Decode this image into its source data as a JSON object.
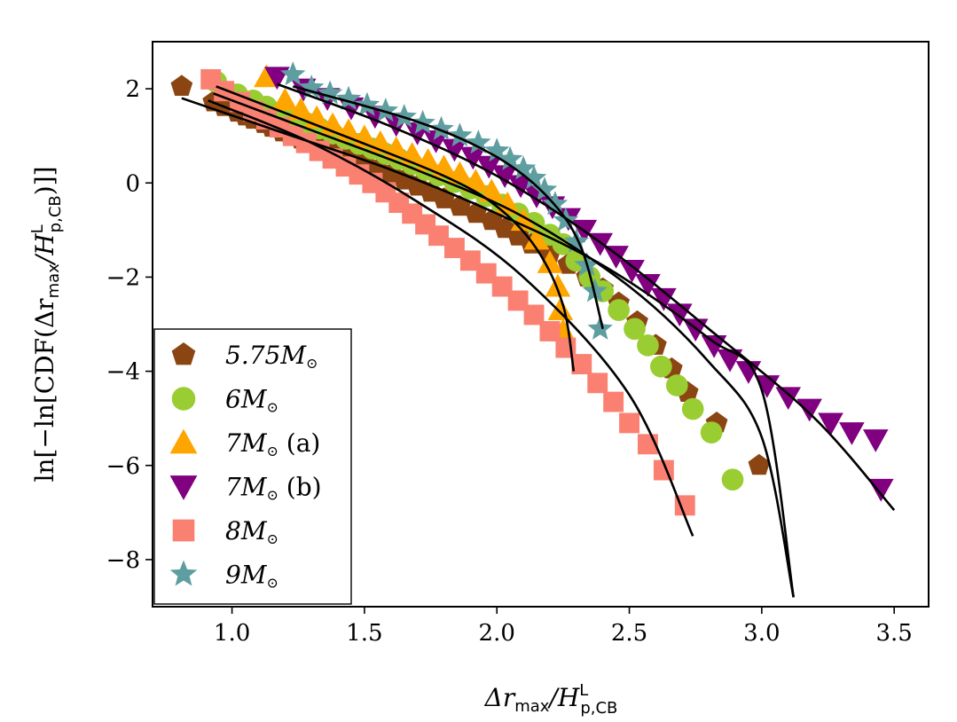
{
  "chart_data": {
    "type": "scatter",
    "xlim": [
      0.7,
      3.63
    ],
    "ylim": [
      -9.0,
      3.0
    ],
    "x_ticks": [
      {
        "value": 1.0,
        "label": "1.0"
      },
      {
        "value": 1.5,
        "label": "1.5"
      },
      {
        "value": 2.0,
        "label": "2.0"
      },
      {
        "value": 2.5,
        "label": "2.5"
      },
      {
        "value": 3.0,
        "label": "3.0"
      },
      {
        "value": 3.5,
        "label": "3.5"
      }
    ],
    "y_ticks": [
      {
        "value": 2,
        "label": "2"
      },
      {
        "value": 0,
        "label": "0"
      },
      {
        "value": -2,
        "label": "−2"
      },
      {
        "value": -4,
        "label": "−4"
      },
      {
        "value": -6,
        "label": "−6"
      },
      {
        "value": -8,
        "label": "−8"
      }
    ],
    "xlabel": {
      "main": "Δr",
      "sub1": "max",
      "mid": "/H",
      "sup": "L",
      "sub2": "p,CB"
    },
    "ylabel": {
      "pre": "ln[−ln[CDF(Δr",
      "sub1": "max",
      "mid": "/H",
      "sup": "L",
      "sub2": "p,CB",
      "post": ")]]"
    },
    "grid": false,
    "legend_position": "lower-left",
    "series": [
      {
        "name": "5.75M⊙",
        "label_main": "5.75M",
        "label_suffix": "",
        "marker": "pentagon",
        "color": "#8B4513",
        "points": [
          [
            0.81,
            2.05
          ],
          [
            0.93,
            1.72
          ],
          [
            0.97,
            1.62
          ],
          [
            1.02,
            1.5
          ],
          [
            1.05,
            1.42
          ],
          [
            1.08,
            1.35
          ],
          [
            1.12,
            1.26
          ],
          [
            1.15,
            1.18
          ],
          [
            1.19,
            1.08
          ],
          [
            1.22,
            1.01
          ],
          [
            1.26,
            0.93
          ],
          [
            1.3,
            0.85
          ],
          [
            1.34,
            0.76
          ],
          [
            1.38,
            0.66
          ],
          [
            1.42,
            0.58
          ],
          [
            1.46,
            0.48
          ],
          [
            1.5,
            0.4
          ],
          [
            1.55,
            0.28
          ],
          [
            1.6,
            0.18
          ],
          [
            1.65,
            0.06
          ],
          [
            1.7,
            -0.07
          ],
          [
            1.75,
            -0.2
          ],
          [
            1.8,
            -0.34
          ],
          [
            1.86,
            -0.5
          ],
          [
            1.92,
            -0.65
          ],
          [
            1.98,
            -0.8
          ],
          [
            2.03,
            -0.97
          ],
          [
            2.08,
            -1.13
          ],
          [
            2.13,
            -1.3
          ],
          [
            2.2,
            -1.5
          ],
          [
            2.27,
            -1.73
          ],
          [
            2.34,
            -2.0
          ],
          [
            2.4,
            -2.25
          ],
          [
            2.46,
            -2.55
          ],
          [
            2.53,
            -2.95
          ],
          [
            2.6,
            -3.45
          ],
          [
            2.66,
            -3.95
          ],
          [
            2.72,
            -4.45
          ],
          [
            2.83,
            -5.1
          ],
          [
            2.99,
            -6.0
          ]
        ]
      },
      {
        "name": "6M⊙",
        "label_main": "6M",
        "label_suffix": "",
        "marker": "circle",
        "color": "#9ACD32",
        "points": [
          [
            0.94,
            2.15
          ],
          [
            1.02,
            1.88
          ],
          [
            1.08,
            1.75
          ],
          [
            1.13,
            1.62
          ],
          [
            1.18,
            1.5
          ],
          [
            1.23,
            1.38
          ],
          [
            1.28,
            1.27
          ],
          [
            1.33,
            1.16
          ],
          [
            1.38,
            1.05
          ],
          [
            1.43,
            0.94
          ],
          [
            1.48,
            0.83
          ],
          [
            1.53,
            0.73
          ],
          [
            1.58,
            0.62
          ],
          [
            1.63,
            0.51
          ],
          [
            1.68,
            0.4
          ],
          [
            1.73,
            0.28
          ],
          [
            1.78,
            0.16
          ],
          [
            1.84,
            0.02
          ],
          [
            1.9,
            -0.12
          ],
          [
            1.96,
            -0.28
          ],
          [
            2.02,
            -0.46
          ],
          [
            2.08,
            -0.65
          ],
          [
            2.14,
            -0.85
          ],
          [
            2.2,
            -1.1
          ],
          [
            2.25,
            -1.3
          ],
          [
            2.3,
            -1.65
          ],
          [
            2.35,
            -2.0
          ],
          [
            2.4,
            -2.3
          ],
          [
            2.46,
            -2.7
          ],
          [
            2.52,
            -3.1
          ],
          [
            2.57,
            -3.45
          ],
          [
            2.62,
            -3.9
          ],
          [
            2.68,
            -4.3
          ],
          [
            2.74,
            -4.8
          ],
          [
            2.81,
            -5.3
          ],
          [
            2.89,
            -6.3
          ]
        ]
      },
      {
        "name": "7M⊙ (a)",
        "label_main": "7M",
        "label_suffix": " (a)",
        "marker": "triangle-up",
        "color": "#FFA500",
        "points": [
          [
            1.13,
            2.25
          ],
          [
            1.2,
            1.75
          ],
          [
            1.26,
            1.55
          ],
          [
            1.32,
            1.38
          ],
          [
            1.38,
            1.23
          ],
          [
            1.44,
            1.1
          ],
          [
            1.5,
            0.97
          ],
          [
            1.56,
            0.85
          ],
          [
            1.62,
            0.72
          ],
          [
            1.68,
            0.6
          ],
          [
            1.74,
            0.47
          ],
          [
            1.8,
            0.33
          ],
          [
            1.86,
            0.19
          ],
          [
            1.92,
            0.03
          ],
          [
            1.98,
            -0.18
          ],
          [
            2.04,
            -0.45
          ],
          [
            2.1,
            -0.8
          ],
          [
            2.15,
            -1.2
          ],
          [
            2.2,
            -1.7
          ],
          [
            2.23,
            -2.2
          ],
          [
            2.24,
            -2.7
          ],
          [
            2.25,
            -3.15
          ]
        ]
      },
      {
        "name": "7M⊙ (b)",
        "label_main": "7M",
        "label_suffix": " (b)",
        "marker": "triangle-down",
        "color": "#800080",
        "points": [
          [
            1.17,
            2.25
          ],
          [
            1.27,
            2.0
          ],
          [
            1.36,
            1.8
          ],
          [
            1.45,
            1.6
          ],
          [
            1.54,
            1.42
          ],
          [
            1.62,
            1.25
          ],
          [
            1.7,
            1.07
          ],
          [
            1.77,
            0.9
          ],
          [
            1.84,
            0.72
          ],
          [
            1.91,
            0.55
          ],
          [
            1.97,
            0.36
          ],
          [
            2.03,
            0.16
          ],
          [
            2.09,
            -0.05
          ],
          [
            2.15,
            -0.27
          ],
          [
            2.21,
            -0.5
          ],
          [
            2.27,
            -0.75
          ],
          [
            2.33,
            -1.0
          ],
          [
            2.39,
            -1.28
          ],
          [
            2.45,
            -1.55
          ],
          [
            2.51,
            -1.85
          ],
          [
            2.57,
            -2.15
          ],
          [
            2.63,
            -2.45
          ],
          [
            2.69,
            -2.78
          ],
          [
            2.75,
            -3.1
          ],
          [
            2.82,
            -3.45
          ],
          [
            2.88,
            -3.75
          ],
          [
            2.95,
            -4.0
          ],
          [
            3.02,
            -4.3
          ],
          [
            3.1,
            -4.55
          ],
          [
            3.18,
            -4.8
          ],
          [
            3.26,
            -5.1
          ],
          [
            3.34,
            -5.3
          ],
          [
            3.43,
            -5.45
          ],
          [
            3.45,
            -6.5
          ]
        ]
      },
      {
        "name": "8M⊙",
        "label_main": "8M",
        "label_suffix": "",
        "marker": "square",
        "color": "#FA8072",
        "points": [
          [
            0.92,
            2.2
          ],
          [
            0.97,
            1.95
          ],
          [
            1.03,
            1.72
          ],
          [
            1.08,
            1.52
          ],
          [
            1.13,
            1.35
          ],
          [
            1.18,
            1.18
          ],
          [
            1.23,
            1.0
          ],
          [
            1.28,
            0.85
          ],
          [
            1.33,
            0.68
          ],
          [
            1.38,
            0.52
          ],
          [
            1.43,
            0.35
          ],
          [
            1.48,
            0.18
          ],
          [
            1.53,
            0.0
          ],
          [
            1.58,
            -0.2
          ],
          [
            1.63,
            -0.42
          ],
          [
            1.68,
            -0.65
          ],
          [
            1.73,
            -0.88
          ],
          [
            1.78,
            -1.12
          ],
          [
            1.84,
            -1.38
          ],
          [
            1.9,
            -1.65
          ],
          [
            1.96,
            -1.92
          ],
          [
            2.02,
            -2.2
          ],
          [
            2.08,
            -2.5
          ],
          [
            2.14,
            -2.8
          ],
          [
            2.2,
            -3.15
          ],
          [
            2.26,
            -3.5
          ],
          [
            2.32,
            -3.85
          ],
          [
            2.38,
            -4.25
          ],
          [
            2.44,
            -4.65
          ],
          [
            2.5,
            -5.1
          ],
          [
            2.57,
            -5.55
          ],
          [
            2.63,
            -6.1
          ],
          [
            2.71,
            -6.85
          ]
        ]
      },
      {
        "name": "9M⊙",
        "label_main": "9M",
        "label_suffix": "",
        "marker": "star",
        "color": "#5F9EA0",
        "points": [
          [
            1.23,
            2.3
          ],
          [
            1.3,
            2.02
          ],
          [
            1.37,
            1.9
          ],
          [
            1.44,
            1.78
          ],
          [
            1.51,
            1.65
          ],
          [
            1.58,
            1.53
          ],
          [
            1.65,
            1.4
          ],
          [
            1.72,
            1.27
          ],
          [
            1.79,
            1.14
          ],
          [
            1.86,
            1.0
          ],
          [
            1.93,
            0.85
          ],
          [
            2.0,
            0.68
          ],
          [
            2.05,
            0.5
          ],
          [
            2.1,
            0.3
          ],
          [
            2.14,
            0.1
          ],
          [
            2.18,
            -0.15
          ],
          [
            2.22,
            -0.45
          ],
          [
            2.26,
            -0.8
          ],
          [
            2.3,
            -1.25
          ],
          [
            2.34,
            -1.75
          ],
          [
            2.37,
            -2.3
          ],
          [
            2.39,
            -3.1
          ]
        ]
      }
    ],
    "fit_curves": [
      {
        "points": [
          [
            0.81,
            1.8
          ],
          [
            1.2,
            1.05
          ],
          [
            1.6,
            0.28
          ],
          [
            2.0,
            -0.65
          ],
          [
            2.4,
            -1.75
          ],
          [
            2.8,
            -3.3
          ],
          [
            3.0,
            -4.4
          ],
          [
            3.12,
            -8.8
          ]
        ]
      },
      {
        "points": [
          [
            0.93,
            1.9
          ],
          [
            1.3,
            1.12
          ],
          [
            1.7,
            0.27
          ],
          [
            2.1,
            -0.72
          ],
          [
            2.5,
            -2.2
          ],
          [
            2.8,
            -3.8
          ],
          [
            3.0,
            -5.4
          ],
          [
            3.12,
            -8.8
          ]
        ]
      },
      {
        "points": [
          [
            0.94,
            2.05
          ],
          [
            1.4,
            1.05
          ],
          [
            1.8,
            0.15
          ],
          [
            2.0,
            -0.5
          ],
          [
            2.15,
            -1.4
          ],
          [
            2.25,
            -2.6
          ],
          [
            2.29,
            -4.0
          ]
        ]
      },
      {
        "points": [
          [
            1.17,
            2.1
          ],
          [
            1.6,
            1.2
          ],
          [
            2.0,
            0.15
          ],
          [
            2.4,
            -1.3
          ],
          [
            2.8,
            -3.1
          ],
          [
            3.2,
            -5.0
          ],
          [
            3.5,
            -6.95
          ]
        ]
      },
      {
        "points": [
          [
            0.91,
            1.75
          ],
          [
            1.3,
            0.85
          ],
          [
            1.7,
            -0.4
          ],
          [
            2.1,
            -2.0
          ],
          [
            2.5,
            -4.5
          ],
          [
            2.74,
            -7.5
          ]
        ]
      },
      {
        "points": [
          [
            1.23,
            2.05
          ],
          [
            1.7,
            1.3
          ],
          [
            2.0,
            0.55
          ],
          [
            2.2,
            -0.35
          ],
          [
            2.32,
            -1.4
          ],
          [
            2.4,
            -3.1
          ]
        ]
      }
    ]
  }
}
